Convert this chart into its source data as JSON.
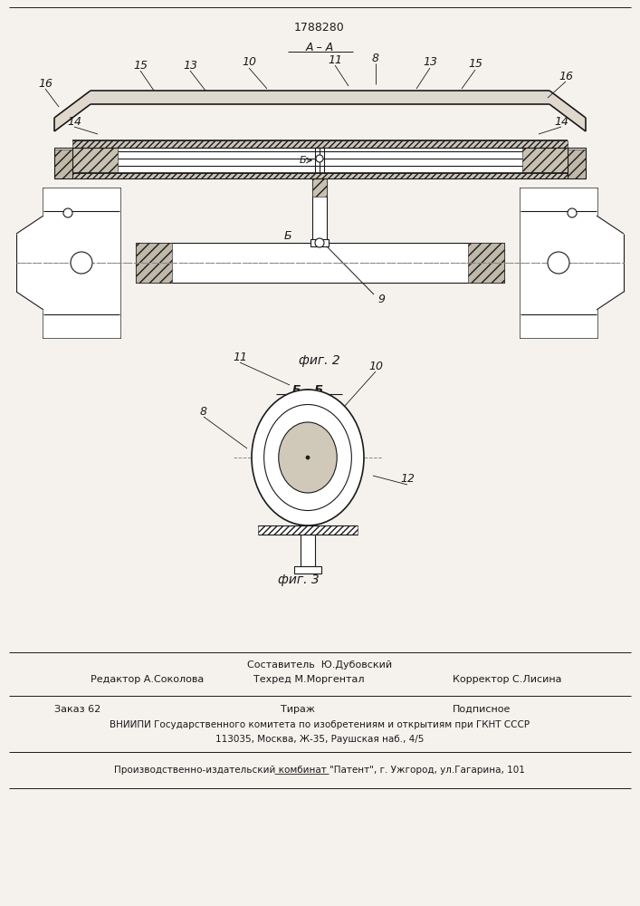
{
  "patent_number": "1788280",
  "bg_color": "#f5f2ee",
  "line_color": "#1a1a1a",
  "footer_line1_center_top": "Составитель  Ю.Дубовский",
  "footer_line1_left": "Редактор А.Соколова",
  "footer_line1_center": "Техред М.Моргентал",
  "footer_line1_right": "Корректор С.Лисина",
  "footer_line2_col1": "Заказ 62",
  "footer_line2_col2": "Тираж",
  "footer_line2_col3": "Подписное",
  "footer_line3": "ВНИИПИ Государственного комитета по изобретениям и открытиям при ГКНТ СССР",
  "footer_line4": "113035, Москва, Ж-35, Раушская наб., 4/5",
  "footer_line5": "Производственно-издательский комбинат \"Патент\", г. Ужгород, ул.Гагарина, 101"
}
